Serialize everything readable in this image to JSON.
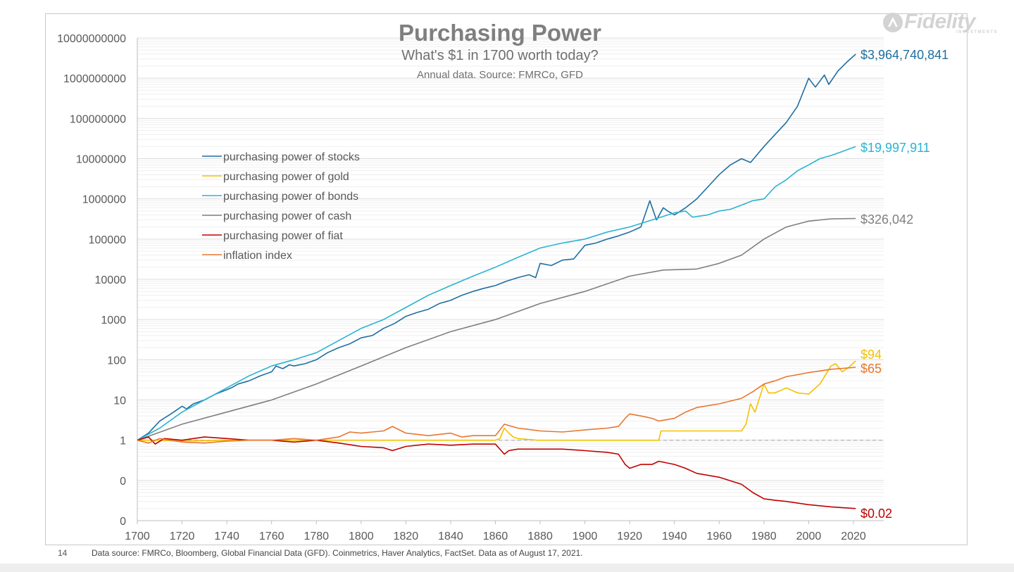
{
  "page": {
    "slide_number": "14",
    "footnote": "Data source: FMRCo, Bloomberg, Global Financial Data (GFD). Coinmetrics, Haver Analytics, FactSet.  Data as of August 17, 2021.",
    "logo_text": "Fidelity",
    "logo_subtext": "INVESTMENTS"
  },
  "chart_data": {
    "type": "line",
    "title": "Purchasing Power",
    "subtitle": "What's $1 in 1700 worth today?",
    "source_note": "Annual data.  Source: FMRCo, GFD",
    "y_scale": "log",
    "xlim": [
      1700,
      2021
    ],
    "ylim_log10": [
      -2,
      10
    ],
    "x_ticks": [
      "1700",
      "1720",
      "1740",
      "1760",
      "1780",
      "1800",
      "1820",
      "1840",
      "1860",
      "1880",
      "1900",
      "1920",
      "1940",
      "1960",
      "1980",
      "2000",
      "2020"
    ],
    "y_ticks": [
      {
        "log10": 10,
        "label": "10000000000"
      },
      {
        "log10": 9,
        "label": "1000000000"
      },
      {
        "log10": 8,
        "label": "100000000"
      },
      {
        "log10": 7,
        "label": "10000000"
      },
      {
        "log10": 6,
        "label": "1000000"
      },
      {
        "log10": 5,
        "label": "100000"
      },
      {
        "log10": 4,
        "label": "10000"
      },
      {
        "log10": 3,
        "label": "1000"
      },
      {
        "log10": 2,
        "label": "100"
      },
      {
        "log10": 1,
        "label": "10"
      },
      {
        "log10": 0,
        "label": "1"
      },
      {
        "log10": -1,
        "label": "0"
      },
      {
        "log10": -2,
        "label": "0"
      }
    ],
    "reference_line_log10": 0,
    "grid": "horizontal minor",
    "legend_placement": "upper-left",
    "series": [
      {
        "name": "purchasing power of stocks",
        "color": "#1f6fa0",
        "end_label": "$3,964,740,841",
        "end_label_color": "#1f6fa0",
        "points": [
          [
            1700,
            1
          ],
          [
            1705,
            1.5
          ],
          [
            1710,
            3
          ],
          [
            1715,
            4.5
          ],
          [
            1720,
            7
          ],
          [
            1722,
            6
          ],
          [
            1725,
            8
          ],
          [
            1730,
            10
          ],
          [
            1735,
            14
          ],
          [
            1740,
            18
          ],
          [
            1742,
            20
          ],
          [
            1745,
            25
          ],
          [
            1750,
            30
          ],
          [
            1755,
            40
          ],
          [
            1760,
            50
          ],
          [
            1762,
            70
          ],
          [
            1765,
            60
          ],
          [
            1768,
            75
          ],
          [
            1770,
            70
          ],
          [
            1775,
            80
          ],
          [
            1780,
            100
          ],
          [
            1785,
            150
          ],
          [
            1790,
            200
          ],
          [
            1795,
            250
          ],
          [
            1800,
            350
          ],
          [
            1805,
            400
          ],
          [
            1810,
            600
          ],
          [
            1815,
            800
          ],
          [
            1820,
            1200
          ],
          [
            1825,
            1500
          ],
          [
            1830,
            1800
          ],
          [
            1835,
            2500
          ],
          [
            1840,
            3000
          ],
          [
            1845,
            4000
          ],
          [
            1850,
            5000
          ],
          [
            1855,
            6000
          ],
          [
            1860,
            7000
          ],
          [
            1865,
            9000
          ],
          [
            1870,
            11000
          ],
          [
            1875,
            13000
          ],
          [
            1878,
            11000
          ],
          [
            1880,
            25000
          ],
          [
            1885,
            22000
          ],
          [
            1890,
            30000
          ],
          [
            1895,
            32000
          ],
          [
            1900,
            70000
          ],
          [
            1905,
            80000
          ],
          [
            1910,
            100000
          ],
          [
            1915,
            120000
          ],
          [
            1920,
            150000
          ],
          [
            1925,
            200000
          ],
          [
            1929,
            900000
          ],
          [
            1932,
            300000
          ],
          [
            1935,
            600000
          ],
          [
            1937,
            500000
          ],
          [
            1940,
            400000
          ],
          [
            1945,
            600000
          ],
          [
            1950,
            1000000
          ],
          [
            1955,
            2000000
          ],
          [
            1960,
            4000000
          ],
          [
            1965,
            7000000
          ],
          [
            1970,
            10000000
          ],
          [
            1974,
            8000000
          ],
          [
            1980,
            20000000
          ],
          [
            1985,
            40000000
          ],
          [
            1990,
            80000000
          ],
          [
            1995,
            200000000
          ],
          [
            2000,
            1000000000
          ],
          [
            2003,
            600000000
          ],
          [
            2007,
            1200000000
          ],
          [
            2009,
            700000000
          ],
          [
            2013,
            1500000000
          ],
          [
            2017,
            2500000000
          ],
          [
            2021,
            3964740841
          ]
        ]
      },
      {
        "name": "purchasing power of gold",
        "color": "#f2c100",
        "end_label": "$94",
        "end_label_color": "#f2c100",
        "points": [
          [
            1700,
            1
          ],
          [
            1710,
            1
          ],
          [
            1720,
            0.95
          ],
          [
            1740,
            1
          ],
          [
            1760,
            1
          ],
          [
            1780,
            1
          ],
          [
            1800,
            1
          ],
          [
            1820,
            1
          ],
          [
            1840,
            1
          ],
          [
            1860,
            1
          ],
          [
            1862,
            1.1
          ],
          [
            1864,
            2
          ],
          [
            1866,
            1.5
          ],
          [
            1868,
            1.2
          ],
          [
            1870,
            1.1
          ],
          [
            1879,
            1
          ],
          [
            1900,
            1
          ],
          [
            1920,
            1
          ],
          [
            1933,
            1
          ],
          [
            1934,
            1.7
          ],
          [
            1950,
            1.7
          ],
          [
            1960,
            1.7
          ],
          [
            1970,
            1.7
          ],
          [
            1972,
            2.5
          ],
          [
            1974,
            8
          ],
          [
            1976,
            5
          ],
          [
            1980,
            25
          ],
          [
            1982,
            15
          ],
          [
            1985,
            15
          ],
          [
            1990,
            20
          ],
          [
            1995,
            15
          ],
          [
            2000,
            14
          ],
          [
            2005,
            25
          ],
          [
            2010,
            70
          ],
          [
            2012,
            80
          ],
          [
            2015,
            50
          ],
          [
            2018,
            65
          ],
          [
            2021,
            94
          ]
        ]
      },
      {
        "name": "purchasing power of bonds",
        "color": "#2bb3d3",
        "end_label": "$19,997,911",
        "end_label_color": "#2bb3d3",
        "points": [
          [
            1700,
            1
          ],
          [
            1710,
            2
          ],
          [
            1720,
            5
          ],
          [
            1730,
            10
          ],
          [
            1740,
            20
          ],
          [
            1750,
            40
          ],
          [
            1760,
            70
          ],
          [
            1770,
            100
          ],
          [
            1780,
            150
          ],
          [
            1790,
            300
          ],
          [
            1800,
            600
          ],
          [
            1810,
            1000
          ],
          [
            1820,
            2000
          ],
          [
            1830,
            4000
          ],
          [
            1840,
            7000
          ],
          [
            1850,
            12000
          ],
          [
            1860,
            20000
          ],
          [
            1870,
            35000
          ],
          [
            1880,
            60000
          ],
          [
            1890,
            80000
          ],
          [
            1900,
            100000
          ],
          [
            1910,
            150000
          ],
          [
            1920,
            200000
          ],
          [
            1930,
            300000
          ],
          [
            1940,
            450000
          ],
          [
            1945,
            500000
          ],
          [
            1948,
            350000
          ],
          [
            1955,
            400000
          ],
          [
            1960,
            500000
          ],
          [
            1965,
            550000
          ],
          [
            1970,
            700000
          ],
          [
            1975,
            900000
          ],
          [
            1980,
            1000000
          ],
          [
            1985,
            2000000
          ],
          [
            1990,
            3000000
          ],
          [
            1995,
            5000000
          ],
          [
            2000,
            7000000
          ],
          [
            2005,
            10000000
          ],
          [
            2010,
            12000000
          ],
          [
            2015,
            15000000
          ],
          [
            2021,
            19997911
          ]
        ]
      },
      {
        "name": "purchasing power of cash",
        "color": "#7f7f7f",
        "end_label": "$326,042",
        "end_label_color": "#7f7f7f",
        "points": [
          [
            1700,
            1
          ],
          [
            1720,
            2.5
          ],
          [
            1740,
            5
          ],
          [
            1760,
            10
          ],
          [
            1780,
            25
          ],
          [
            1800,
            70
          ],
          [
            1820,
            200
          ],
          [
            1840,
            500
          ],
          [
            1860,
            1000
          ],
          [
            1880,
            2500
          ],
          [
            1900,
            5000
          ],
          [
            1920,
            12000
          ],
          [
            1935,
            17000
          ],
          [
            1950,
            18000
          ],
          [
            1960,
            25000
          ],
          [
            1970,
            40000
          ],
          [
            1980,
            100000
          ],
          [
            1990,
            200000
          ],
          [
            2000,
            280000
          ],
          [
            2010,
            320000
          ],
          [
            2021,
            326042
          ]
        ]
      },
      {
        "name": "purchasing power of fiat",
        "color": "#c00000",
        "end_label": "$0.02",
        "end_label_color": "#c00000",
        "points": [
          [
            1700,
            1
          ],
          [
            1705,
            1.2
          ],
          [
            1708,
            0.8
          ],
          [
            1712,
            1.1
          ],
          [
            1720,
            1
          ],
          [
            1730,
            1.2
          ],
          [
            1740,
            1.1
          ],
          [
            1750,
            1
          ],
          [
            1760,
            1
          ],
          [
            1770,
            0.9
          ],
          [
            1780,
            1
          ],
          [
            1790,
            0.85
          ],
          [
            1800,
            0.7
          ],
          [
            1810,
            0.65
          ],
          [
            1814,
            0.55
          ],
          [
            1820,
            0.7
          ],
          [
            1830,
            0.8
          ],
          [
            1840,
            0.75
          ],
          [
            1850,
            0.8
          ],
          [
            1860,
            0.8
          ],
          [
            1864,
            0.45
          ],
          [
            1866,
            0.55
          ],
          [
            1870,
            0.6
          ],
          [
            1880,
            0.6
          ],
          [
            1890,
            0.6
          ],
          [
            1900,
            0.55
          ],
          [
            1910,
            0.5
          ],
          [
            1915,
            0.45
          ],
          [
            1918,
            0.25
          ],
          [
            1920,
            0.2
          ],
          [
            1925,
            0.25
          ],
          [
            1930,
            0.25
          ],
          [
            1933,
            0.3
          ],
          [
            1940,
            0.25
          ],
          [
            1945,
            0.2
          ],
          [
            1950,
            0.15
          ],
          [
            1960,
            0.12
          ],
          [
            1970,
            0.08
          ],
          [
            1975,
            0.05
          ],
          [
            1980,
            0.035
          ],
          [
            1985,
            0.032
          ],
          [
            1990,
            0.03
          ],
          [
            2000,
            0.025
          ],
          [
            2010,
            0.022
          ],
          [
            2021,
            0.02
          ]
        ]
      },
      {
        "name": "inflation index",
        "color": "#e8772e",
        "end_label": "$65",
        "end_label_color": "#e8772e",
        "points": [
          [
            1700,
            1
          ],
          [
            1705,
            0.85
          ],
          [
            1710,
            1.1
          ],
          [
            1720,
            0.9
          ],
          [
            1730,
            0.85
          ],
          [
            1740,
            0.95
          ],
          [
            1750,
            1
          ],
          [
            1760,
            1
          ],
          [
            1770,
            1.1
          ],
          [
            1780,
            1
          ],
          [
            1790,
            1.2
          ],
          [
            1795,
            1.6
          ],
          [
            1800,
            1.5
          ],
          [
            1805,
            1.6
          ],
          [
            1810,
            1.7
          ],
          [
            1814,
            2.2
          ],
          [
            1820,
            1.5
          ],
          [
            1830,
            1.3
          ],
          [
            1840,
            1.5
          ],
          [
            1845,
            1.2
          ],
          [
            1850,
            1.3
          ],
          [
            1860,
            1.3
          ],
          [
            1862,
            1.8
          ],
          [
            1864,
            2.5
          ],
          [
            1870,
            2
          ],
          [
            1880,
            1.7
          ],
          [
            1890,
            1.6
          ],
          [
            1900,
            1.8
          ],
          [
            1910,
            2
          ],
          [
            1915,
            2.2
          ],
          [
            1918,
            3.5
          ],
          [
            1920,
            4.5
          ],
          [
            1925,
            4
          ],
          [
            1930,
            3.5
          ],
          [
            1933,
            3
          ],
          [
            1940,
            3.5
          ],
          [
            1945,
            5
          ],
          [
            1950,
            6.5
          ],
          [
            1960,
            8
          ],
          [
            1970,
            11
          ],
          [
            1975,
            16
          ],
          [
            1980,
            25
          ],
          [
            1985,
            30
          ],
          [
            1990,
            38
          ],
          [
            2000,
            48
          ],
          [
            2010,
            58
          ],
          [
            2021,
            65
          ]
        ]
      }
    ]
  }
}
